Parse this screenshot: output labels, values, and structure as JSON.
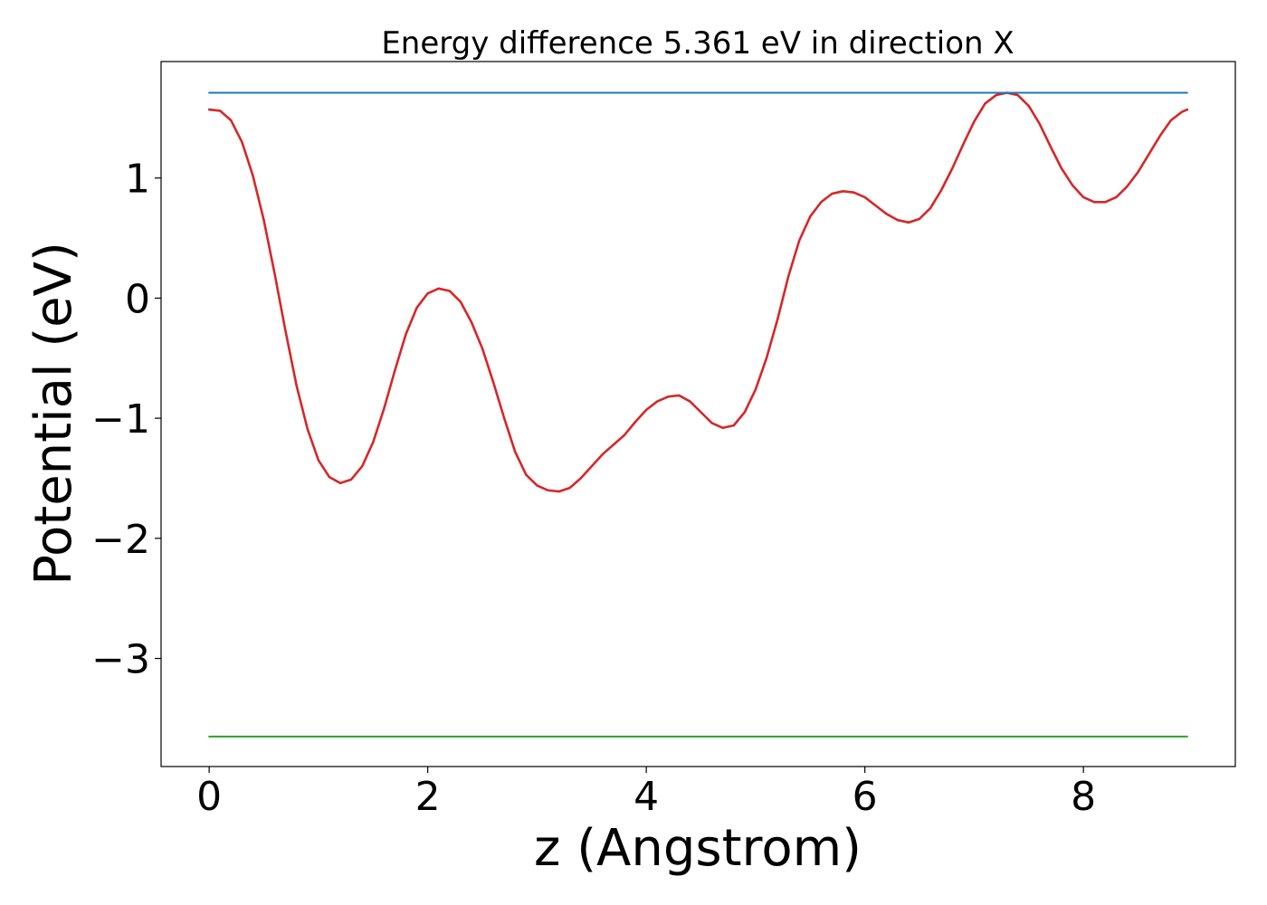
{
  "chart_data": {
    "type": "line",
    "title": "Energy difference 5.361 eV in direction X",
    "xlabel": "z (Angstrom)",
    "ylabel": "Potential (eV)",
    "xlim": [
      -0.44,
      9.39
    ],
    "ylim": [
      -3.9,
      1.97
    ],
    "x_ticks": [
      0,
      2,
      4,
      6,
      8
    ],
    "x_tick_labels": [
      "0",
      "2",
      "4",
      "6",
      "8"
    ],
    "y_ticks": [
      -3,
      -2,
      -1,
      0,
      1
    ],
    "y_tick_labels": [
      "−3",
      "−2",
      "−1",
      "0",
      "1"
    ],
    "grid": false,
    "series": [
      {
        "color": "#d62728",
        "points": [
          [
            0.0,
            1.57
          ],
          [
            0.1,
            1.56
          ],
          [
            0.2,
            1.48
          ],
          [
            0.3,
            1.3
          ],
          [
            0.4,
            1.02
          ],
          [
            0.5,
            0.65
          ],
          [
            0.6,
            0.2
          ],
          [
            0.7,
            -0.28
          ],
          [
            0.8,
            -0.73
          ],
          [
            0.9,
            -1.09
          ],
          [
            1.0,
            -1.35
          ],
          [
            1.1,
            -1.49
          ],
          [
            1.2,
            -1.54
          ],
          [
            1.3,
            -1.51
          ],
          [
            1.4,
            -1.4
          ],
          [
            1.5,
            -1.2
          ],
          [
            1.6,
            -0.92
          ],
          [
            1.7,
            -0.6
          ],
          [
            1.8,
            -0.3
          ],
          [
            1.9,
            -0.08
          ],
          [
            2.0,
            0.04
          ],
          [
            2.1,
            0.08
          ],
          [
            2.2,
            0.06
          ],
          [
            2.3,
            -0.03
          ],
          [
            2.4,
            -0.2
          ],
          [
            2.5,
            -0.42
          ],
          [
            2.6,
            -0.7
          ],
          [
            2.7,
            -1.0
          ],
          [
            2.8,
            -1.28
          ],
          [
            2.9,
            -1.47
          ],
          [
            3.0,
            -1.56
          ],
          [
            3.1,
            -1.6
          ],
          [
            3.2,
            -1.61
          ],
          [
            3.3,
            -1.58
          ],
          [
            3.4,
            -1.5
          ],
          [
            3.5,
            -1.4
          ],
          [
            3.6,
            -1.3
          ],
          [
            3.7,
            -1.22
          ],
          [
            3.8,
            -1.14
          ],
          [
            3.9,
            -1.03
          ],
          [
            4.0,
            -0.93
          ],
          [
            4.1,
            -0.86
          ],
          [
            4.2,
            -0.82
          ],
          [
            4.3,
            -0.81
          ],
          [
            4.4,
            -0.86
          ],
          [
            4.5,
            -0.95
          ],
          [
            4.6,
            -1.04
          ],
          [
            4.7,
            -1.08
          ],
          [
            4.8,
            -1.06
          ],
          [
            4.9,
            -0.95
          ],
          [
            5.0,
            -0.76
          ],
          [
            5.1,
            -0.5
          ],
          [
            5.2,
            -0.18
          ],
          [
            5.3,
            0.18
          ],
          [
            5.4,
            0.48
          ],
          [
            5.5,
            0.68
          ],
          [
            5.6,
            0.8
          ],
          [
            5.7,
            0.87
          ],
          [
            5.8,
            0.89
          ],
          [
            5.9,
            0.88
          ],
          [
            6.0,
            0.84
          ],
          [
            6.1,
            0.77
          ],
          [
            6.2,
            0.7
          ],
          [
            6.3,
            0.65
          ],
          [
            6.4,
            0.63
          ],
          [
            6.5,
            0.66
          ],
          [
            6.6,
            0.75
          ],
          [
            6.7,
            0.9
          ],
          [
            6.8,
            1.08
          ],
          [
            6.9,
            1.28
          ],
          [
            7.0,
            1.47
          ],
          [
            7.1,
            1.62
          ],
          [
            7.2,
            1.69
          ],
          [
            7.3,
            1.71
          ],
          [
            7.4,
            1.69
          ],
          [
            7.5,
            1.6
          ],
          [
            7.6,
            1.45
          ],
          [
            7.7,
            1.26
          ],
          [
            7.8,
            1.08
          ],
          [
            7.9,
            0.94
          ],
          [
            8.0,
            0.84
          ],
          [
            8.1,
            0.8
          ],
          [
            8.2,
            0.8
          ],
          [
            8.3,
            0.84
          ],
          [
            8.4,
            0.93
          ],
          [
            8.5,
            1.05
          ],
          [
            8.6,
            1.2
          ],
          [
            8.7,
            1.35
          ],
          [
            8.8,
            1.48
          ],
          [
            8.9,
            1.55
          ],
          [
            8.95,
            1.57
          ]
        ]
      },
      {
        "color": "#1f77b4",
        "points": [
          [
            0.0,
            1.71
          ],
          [
            8.95,
            1.71
          ]
        ]
      },
      {
        "color": "#2ca02c",
        "points": [
          [
            0.0,
            -3.65
          ],
          [
            8.95,
            -3.65
          ]
        ]
      }
    ]
  }
}
